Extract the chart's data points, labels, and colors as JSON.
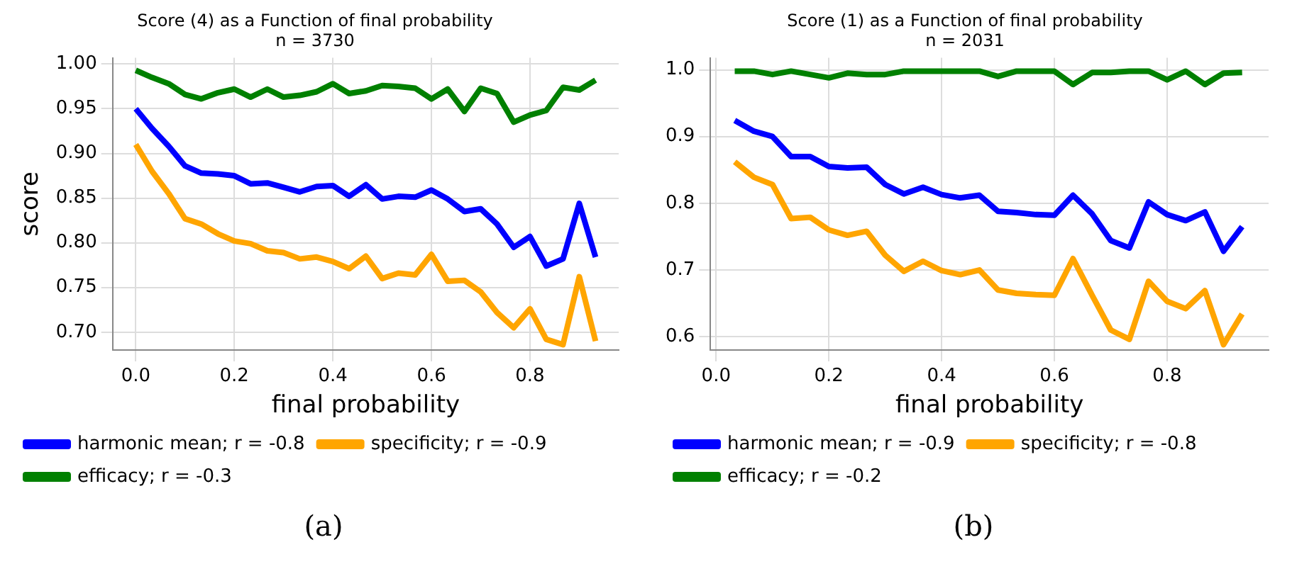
{
  "chart_data": [
    {
      "type": "line",
      "title": "Score (4) as a Function of final probability",
      "subtitle": "n = 3730",
      "xlabel": "final probability",
      "ylabel": "score",
      "x": [
        0,
        0.033,
        0.067,
        0.1,
        0.133,
        0.167,
        0.2,
        0.233,
        0.267,
        0.3,
        0.333,
        0.367,
        0.4,
        0.433,
        0.467,
        0.5,
        0.533,
        0.567,
        0.6,
        0.633,
        0.667,
        0.7,
        0.733,
        0.767,
        0.8,
        0.833,
        0.867,
        0.9,
        0.933
      ],
      "series": [
        {
          "name": "harmonic mean; r = -0.8",
          "color": "#0000ff",
          "values": [
            0.95,
            0.928,
            0.908,
            0.886,
            0.878,
            0.877,
            0.875,
            0.866,
            0.867,
            0.862,
            0.857,
            0.863,
            0.864,
            0.852,
            0.865,
            0.849,
            0.852,
            0.851,
            0.859,
            0.849,
            0.835,
            0.838,
            0.821,
            0.795,
            0.807,
            0.774,
            0.782,
            0.844,
            0.784
          ]
        },
        {
          "name": "specificity; r = -0.9",
          "color": "#ffa500",
          "values": [
            0.91,
            0.88,
            0.855,
            0.827,
            0.821,
            0.81,
            0.802,
            0.799,
            0.791,
            0.789,
            0.782,
            0.784,
            0.779,
            0.771,
            0.785,
            0.76,
            0.766,
            0.764,
            0.787,
            0.757,
            0.758,
            0.745,
            0.722,
            0.705,
            0.726,
            0.692,
            0.686,
            0.762,
            0.69
          ]
        },
        {
          "name": "efficacy; r = -0.3",
          "color": "#008000",
          "values": [
            0.993,
            0.985,
            0.978,
            0.966,
            0.961,
            0.968,
            0.972,
            0.963,
            0.972,
            0.963,
            0.965,
            0.969,
            0.978,
            0.967,
            0.97,
            0.976,
            0.975,
            0.973,
            0.961,
            0.972,
            0.947,
            0.973,
            0.967,
            0.935,
            0.943,
            0.948,
            0.974,
            0.971,
            0.982
          ]
        }
      ],
      "xlim": [
        -0.047,
        0.98
      ],
      "xticks": [
        {
          "value": 0,
          "label": "0.0"
        },
        0.2,
        0.4,
        0.6,
        0.8
      ],
      "ylim": [
        0.68,
        1.007
      ],
      "yticks": [
        {
          "value": 0.7,
          "label": "0.70"
        },
        0.75,
        {
          "value": 0.8,
          "label": "0.80"
        },
        0.85,
        {
          "value": 0.9,
          "label": "0.90"
        },
        0.95,
        {
          "value": 1.0,
          "label": "1.00"
        }
      ],
      "grid": true,
      "legend": "bottom left",
      "marker": "none",
      "line_style": "solid",
      "annotations": [
        "(a)"
      ]
    },
    {
      "type": "line",
      "title": "Score (1) as a Function of final probability",
      "subtitle": "n = 2031",
      "xlabel": "final probability",
      "x": [
        0.033,
        0.067,
        0.1,
        0.133,
        0.167,
        0.2,
        0.233,
        0.267,
        0.3,
        0.333,
        0.367,
        0.4,
        0.433,
        0.467,
        0.5,
        0.533,
        0.567,
        0.6,
        0.633,
        0.667,
        0.7,
        0.733,
        0.767,
        0.8,
        0.833,
        0.867,
        0.9,
        0.933
      ],
      "series": [
        {
          "name": "harmonic mean; r = -0.9",
          "color": "#0000ff",
          "values": [
            0.924,
            0.908,
            0.9,
            0.87,
            0.87,
            0.855,
            0.853,
            0.854,
            0.828,
            0.814,
            0.824,
            0.813,
            0.808,
            0.812,
            0.788,
            0.786,
            0.783,
            0.782,
            0.812,
            0.784,
            0.744,
            0.733,
            0.802,
            0.783,
            0.774,
            0.787,
            0.728,
            0.765
          ]
        },
        {
          "name": "specificity; r = -0.8",
          "color": "#ffa500",
          "values": [
            0.862,
            0.839,
            0.828,
            0.777,
            0.779,
            0.76,
            0.752,
            0.758,
            0.722,
            0.698,
            0.713,
            0.699,
            0.693,
            0.7,
            0.67,
            0.665,
            0.663,
            0.662,
            0.717,
            0.662,
            0.61,
            0.596,
            0.683,
            0.653,
            0.642,
            0.669,
            0.588,
            0.634
          ]
        },
        {
          "name": "efficacy; r = -0.2",
          "color": "#008000",
          "values": [
            0.998,
            0.998,
            0.993,
            0.998,
            0.993,
            0.988,
            0.995,
            0.993,
            0.993,
            0.998,
            0.998,
            0.998,
            0.998,
            0.998,
            0.99,
            0.998,
            0.998,
            0.998,
            0.978,
            0.996,
            0.996,
            0.998,
            0.998,
            0.985,
            0.998,
            0.978,
            0.995,
            0.996
          ]
        }
      ],
      "xlim": [
        -0.01,
        0.98
      ],
      "xticks": [
        {
          "value": 0,
          "label": "0.0"
        },
        0.2,
        0.4,
        0.6,
        0.8
      ],
      "ylim": [
        0.58,
        1.018
      ],
      "yticks": [
        0.6,
        0.7,
        0.8,
        0.9,
        {
          "value": 1.0,
          "label": "1.0"
        }
      ],
      "grid": true,
      "legend": "bottom left",
      "marker": "none",
      "line_style": "solid",
      "annotations": [
        "(b)"
      ]
    }
  ]
}
